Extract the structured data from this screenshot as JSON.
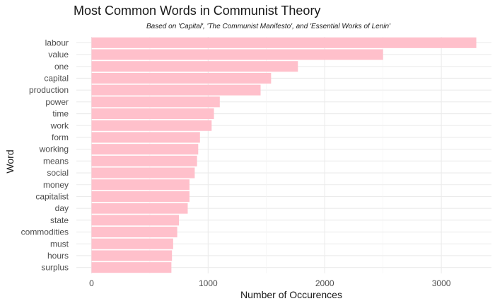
{
  "chart_data": {
    "type": "bar",
    "orientation": "horizontal",
    "title": "Most Common Words in Communist Theory",
    "subtitle": "Based on 'Capital', 'The Communist Manifesto', and 'Essential Works of Lenin'",
    "xlabel": "Number of Occurences",
    "ylabel": "Word",
    "categories": [
      "labour",
      "value",
      "one",
      "capital",
      "production",
      "power",
      "time",
      "work",
      "form",
      "working",
      "means",
      "social",
      "money",
      "capitalist",
      "day",
      "state",
      "commodities",
      "must",
      "hours",
      "surplus"
    ],
    "values": [
      3300,
      2500,
      1770,
      1540,
      1450,
      1100,
      1050,
      1030,
      930,
      915,
      905,
      885,
      840,
      840,
      825,
      750,
      735,
      700,
      690,
      685
    ],
    "xticks": [
      0,
      1000,
      2000,
      3000
    ],
    "xlim": [
      -130,
      3430
    ],
    "bar_color": "#ffc0cb",
    "grid": true,
    "legend": "none"
  }
}
